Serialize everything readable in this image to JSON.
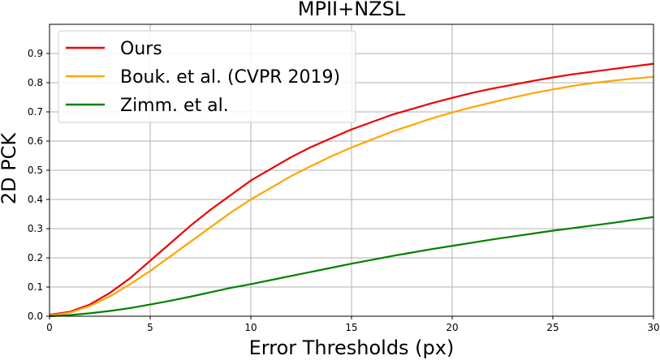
{
  "chart_data": {
    "type": "line",
    "title": "MPII+NZSL",
    "xlabel": "Error Thresholds (px)",
    "ylabel": "2D PCK",
    "xlim": [
      0,
      30
    ],
    "ylim": [
      0,
      1.0
    ],
    "xticks": [
      "0",
      "5",
      "10",
      "15",
      "20",
      "25",
      "30"
    ],
    "yticks": [
      "0.0",
      "0.1",
      "0.2",
      "0.3",
      "0.4",
      "0.5",
      "0.6",
      "0.7",
      "0.8",
      "0.9"
    ],
    "grid": true,
    "legend_position": "top-left",
    "x": [
      0,
      1,
      2,
      3,
      4,
      5,
      6,
      7,
      8,
      9,
      10,
      11,
      12,
      13,
      14,
      15,
      16,
      17,
      18,
      19,
      20,
      21,
      22,
      23,
      24,
      25,
      26,
      27,
      28,
      29,
      30
    ],
    "series": [
      {
        "name": "Ours",
        "color": "#ee0000",
        "values": [
          0.005,
          0.015,
          0.04,
          0.08,
          0.13,
          0.19,
          0.25,
          0.31,
          0.365,
          0.415,
          0.465,
          0.505,
          0.545,
          0.58,
          0.61,
          0.64,
          0.665,
          0.69,
          0.71,
          0.73,
          0.748,
          0.765,
          0.78,
          0.793,
          0.806,
          0.818,
          0.829,
          0.838,
          0.847,
          0.856,
          0.865
        ]
      },
      {
        "name": "Bouk. et al. (CVPR 2019)",
        "color": "#ffa500",
        "values": [
          0.003,
          0.012,
          0.035,
          0.068,
          0.11,
          0.155,
          0.205,
          0.255,
          0.305,
          0.355,
          0.4,
          0.44,
          0.48,
          0.515,
          0.548,
          0.578,
          0.605,
          0.632,
          0.655,
          0.678,
          0.698,
          0.716,
          0.733,
          0.749,
          0.764,
          0.777,
          0.789,
          0.799,
          0.807,
          0.814,
          0.82
        ]
      },
      {
        "name": "Zimm. et al.",
        "color": "#008000",
        "values": [
          0.0,
          0.004,
          0.01,
          0.018,
          0.028,
          0.04,
          0.053,
          0.067,
          0.082,
          0.097,
          0.11,
          0.124,
          0.138,
          0.152,
          0.166,
          0.18,
          0.193,
          0.206,
          0.218,
          0.23,
          0.241,
          0.252,
          0.263,
          0.273,
          0.283,
          0.293,
          0.302,
          0.311,
          0.32,
          0.33,
          0.34
        ]
      }
    ]
  }
}
